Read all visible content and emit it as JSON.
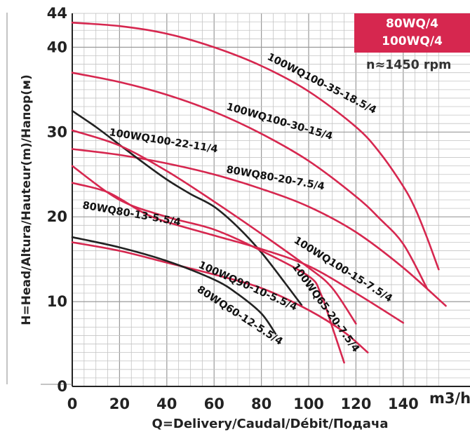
{
  "chart_data": {
    "type": "line",
    "xlabel": "Q=Delivery/Caudal/Débit/Подача",
    "ylabel": "H=Head/Altura/Hauteur(m)/Hапор(м)",
    "x_unit": "m3/h",
    "xlim": [
      0,
      158
    ],
    "ylim": [
      0,
      44
    ],
    "x_ticks": [
      0,
      20,
      40,
      60,
      80,
      100,
      120,
      140
    ],
    "y_ticks": [
      0,
      10,
      20,
      30,
      40,
      44
    ],
    "grid": true,
    "legend": {
      "lines": [
        "80WQ/4",
        "100WQ/4"
      ],
      "color": "#d6274f",
      "placement": "top-right"
    },
    "speed_label": "n≈1450 rpm",
    "series": [
      {
        "name": "100WQ100-35-18.5/4",
        "color": "#d6274f",
        "points": [
          [
            0,
            42.9
          ],
          [
            20,
            42.5
          ],
          [
            40,
            41.6
          ],
          [
            60,
            40.0
          ],
          [
            80,
            37.8
          ],
          [
            100,
            34.8
          ],
          [
            120,
            30.6
          ],
          [
            130,
            27.6
          ],
          [
            140,
            23.6
          ],
          [
            145,
            21.0
          ],
          [
            150,
            17.6
          ],
          [
            155,
            13.8
          ]
        ]
      },
      {
        "name": "100WQ100-30-15/4",
        "color": "#d6274f",
        "points": [
          [
            0,
            37.0
          ],
          [
            20,
            35.9
          ],
          [
            40,
            34.4
          ],
          [
            60,
            32.4
          ],
          [
            80,
            29.8
          ],
          [
            100,
            26.6
          ],
          [
            120,
            22.4
          ],
          [
            130,
            19.8
          ],
          [
            140,
            16.8
          ],
          [
            150,
            11.6
          ]
        ]
      },
      {
        "name": "100WQ100-22-11/4",
        "color": "#d6274f",
        "points": [
          [
            0,
            28.0
          ],
          [
            20,
            27.3
          ],
          [
            40,
            26.3
          ],
          [
            60,
            25.0
          ],
          [
            80,
            23.3
          ],
          [
            100,
            21.2
          ],
          [
            120,
            18.2
          ],
          [
            140,
            14.0
          ],
          [
            158,
            9.5
          ]
        ]
      },
      {
        "name": "80WQ80-20-7.5/4",
        "color": "#222222",
        "points": [
          [
            0,
            32.5
          ],
          [
            10,
            30.6
          ],
          [
            20,
            28.5
          ],
          [
            30,
            26.4
          ],
          [
            40,
            24.4
          ],
          [
            50,
            22.7
          ],
          [
            60,
            21.2
          ],
          [
            70,
            18.8
          ],
          [
            80,
            15.8
          ],
          [
            90,
            12.2
          ],
          [
            97,
            9.6
          ]
        ]
      },
      {
        "name": "100WQ100-15-7.5/4",
        "color": "#d6274f",
        "points": [
          [
            0,
            24.0
          ],
          [
            15,
            22.9
          ],
          [
            30,
            20.5
          ],
          [
            40,
            19.4
          ],
          [
            60,
            17.8
          ],
          [
            80,
            16.2
          ],
          [
            100,
            14.2
          ],
          [
            120,
            11.0
          ],
          [
            140,
            7.5
          ]
        ]
      },
      {
        "name": "100WQ65-20-7.5/4",
        "color": "#d6274f",
        "points": [
          [
            0,
            30.2
          ],
          [
            20,
            28.4
          ],
          [
            40,
            25.4
          ],
          [
            60,
            21.8
          ],
          [
            80,
            18.0
          ],
          [
            100,
            14.0
          ],
          [
            110,
            11.6
          ],
          [
            120,
            7.4
          ]
        ]
      },
      {
        "name": "80WQ80-13-5.5/4",
        "color": "#d6274f",
        "points": [
          [
            0,
            26.0
          ],
          [
            20,
            22.0
          ],
          [
            40,
            20.0
          ],
          [
            60,
            18.5
          ],
          [
            80,
            16.0
          ],
          [
            100,
            13.0
          ],
          [
            105,
            11.0
          ],
          [
            110,
            7.0
          ],
          [
            115,
            2.8
          ]
        ]
      },
      {
        "name": "100WQ90-10-5.5/4",
        "color": "#d6274f",
        "points": [
          [
            0,
            17.0
          ],
          [
            20,
            16.0
          ],
          [
            40,
            14.6
          ],
          [
            60,
            13.2
          ],
          [
            80,
            11.6
          ],
          [
            100,
            9.0
          ],
          [
            115,
            6.4
          ],
          [
            125,
            4.0
          ]
        ]
      },
      {
        "name": "80WQ60-12-5.5/4",
        "color": "#222222",
        "points": [
          [
            0,
            17.6
          ],
          [
            20,
            16.4
          ],
          [
            40,
            14.8
          ],
          [
            60,
            12.6
          ],
          [
            70,
            10.9
          ],
          [
            80,
            8.6
          ],
          [
            86,
            6.2
          ]
        ]
      }
    ]
  }
}
